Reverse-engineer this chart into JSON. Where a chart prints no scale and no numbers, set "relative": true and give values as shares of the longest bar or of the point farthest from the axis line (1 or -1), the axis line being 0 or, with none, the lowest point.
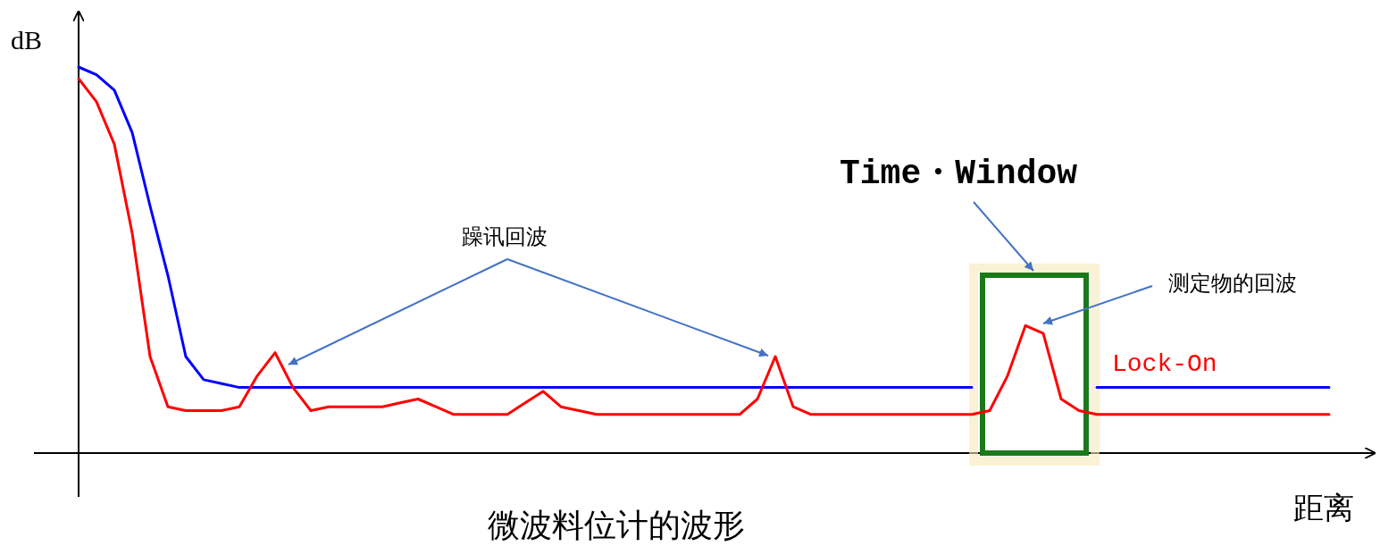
{
  "chart_data": {
    "type": "line",
    "relative": true,
    "title": "微波料位计的波形",
    "xlabel": "距离",
    "ylabel": "dB",
    "annotations": [
      "Time・Window",
      "躁讯回波",
      "测定物的回波"
    ],
    "categories": [
      null,
      null,
      null,
      null,
      null,
      null,
      null,
      null,
      null,
      null,
      null,
      null,
      null,
      null,
      null,
      null,
      null,
      null,
      null,
      null,
      null,
      null,
      null,
      null,
      null,
      null,
      null,
      null,
      null,
      null,
      null,
      null,
      null,
      null,
      null,
      null,
      null,
      null,
      null,
      null,
      null,
      null,
      null,
      null,
      null,
      null,
      null,
      null,
      null,
      null,
      null,
      null,
      null,
      null,
      null,
      null,
      null,
      null,
      null,
      null,
      null,
      null,
      null,
      null,
      null,
      null,
      null,
      null,
      null,
      null,
      null
    ],
    "series": [
      {
        "color": "#0000ff",
        "values": [
          1.0,
          0.98,
          0.94,
          0.83,
          0.64,
          0.46,
          0.25,
          0.19,
          0.18,
          0.17,
          0.17,
          0.17,
          0.17,
          0.17,
          0.17,
          0.17,
          0.17,
          0.17,
          0.17,
          0.17,
          0.17,
          0.17,
          0.17,
          0.17,
          0.17,
          0.17,
          0.17,
          0.17,
          0.17,
          0.17,
          0.17,
          0.17,
          0.17,
          0.17,
          0.17,
          0.17,
          0.17,
          0.17,
          0.17,
          0.17,
          0.17,
          0.17,
          0.17,
          0.17,
          0.17,
          0.17,
          0.17,
          0.17,
          0.17,
          0.17,
          0.17,
          null,
          null,
          null,
          null,
          null,
          null,
          0.17,
          0.17,
          0.17,
          0.17,
          0.17,
          0.17,
          0.17,
          0.17,
          0.17,
          0.17,
          0.17,
          0.17,
          0.17,
          0.17
        ]
      },
      {
        "name": "Lock-On",
        "color": "#ff0000",
        "values": [
          0.97,
          0.91,
          0.8,
          0.57,
          0.25,
          0.12,
          0.11,
          0.11,
          0.11,
          0.12,
          0.2,
          0.26,
          0.17,
          0.11,
          0.12,
          0.12,
          0.12,
          0.12,
          0.13,
          0.14,
          0.12,
          0.1,
          0.1,
          0.1,
          0.1,
          0.13,
          0.16,
          0.12,
          0.11,
          0.1,
          0.1,
          0.1,
          0.1,
          0.1,
          0.1,
          0.1,
          0.1,
          0.1,
          0.14,
          0.25,
          0.12,
          0.1,
          0.1,
          0.1,
          0.1,
          0.1,
          0.1,
          0.1,
          0.1,
          0.1,
          0.1,
          0.11,
          0.2,
          0.33,
          0.31,
          0.14,
          0.11,
          0.1,
          0.1,
          0.1,
          0.1,
          0.1,
          0.1,
          0.1,
          0.1,
          0.1,
          0.1,
          0.1,
          0.1,
          0.1,
          0.1
        ]
      }
    ]
  }
}
